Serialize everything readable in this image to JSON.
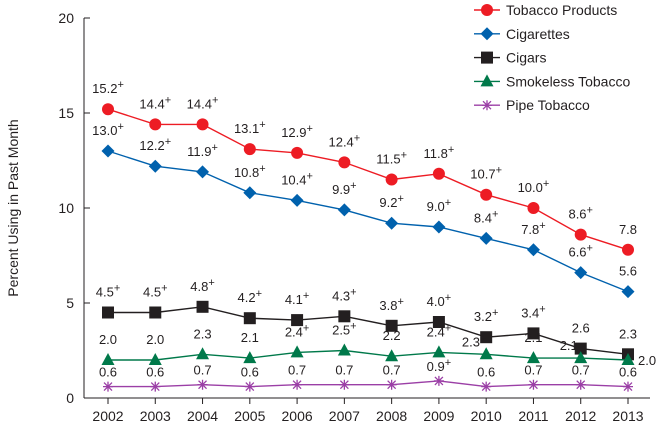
{
  "chart_data": {
    "type": "line",
    "title": "",
    "xlabel": "",
    "ylabel": "Percent Using in Past Month",
    "ylim": [
      0,
      20
    ],
    "yticks": [
      "0",
      "5",
      "10",
      "15",
      "20"
    ],
    "x": [
      "2002",
      "2003",
      "2004",
      "2005",
      "2006",
      "2007",
      "2008",
      "2009",
      "2010",
      "2011",
      "2012",
      "2013"
    ],
    "grid": false,
    "legend_placement": "top-right",
    "significance_marker": "+",
    "series": [
      {
        "name": "Tobacco Products",
        "color": "#ed1c24",
        "marker": "circle",
        "values": [
          15.2,
          14.4,
          14.4,
          13.1,
          12.9,
          12.4,
          11.5,
          11.8,
          10.7,
          10.0,
          8.6,
          7.8
        ],
        "labels": [
          "15.2",
          "14.4",
          "14.4",
          "13.1",
          "12.9",
          "12.4",
          "11.5",
          "11.8",
          "10.7",
          "10.0",
          "8.6",
          "7.8"
        ],
        "significant": [
          true,
          true,
          true,
          true,
          true,
          true,
          true,
          true,
          true,
          true,
          true,
          false
        ]
      },
      {
        "name": "Cigarettes",
        "color": "#0061ad",
        "marker": "diamond",
        "values": [
          13.0,
          12.2,
          11.9,
          10.8,
          10.4,
          9.9,
          9.2,
          9.0,
          8.4,
          7.8,
          6.6,
          5.6
        ],
        "labels": [
          "13.0",
          "12.2",
          "11.9",
          "10.8",
          "10.4",
          "9.9",
          "9.2",
          "9.0",
          "8.4",
          "7.8",
          "6.6",
          "5.6"
        ],
        "significant": [
          true,
          true,
          true,
          true,
          true,
          true,
          true,
          true,
          true,
          true,
          true,
          false
        ]
      },
      {
        "name": "Cigars",
        "color": "#231f20",
        "marker": "square",
        "values": [
          4.5,
          4.5,
          4.8,
          4.2,
          4.1,
          4.3,
          3.8,
          4.0,
          3.2,
          3.4,
          2.6,
          2.3
        ],
        "labels": [
          "4.5",
          "4.5",
          "4.8",
          "4.2",
          "4.1",
          "4.3",
          "3.8",
          "4.0",
          "3.2",
          "3.4",
          "2.6",
          "2.3"
        ],
        "significant": [
          true,
          true,
          true,
          true,
          true,
          true,
          true,
          true,
          true,
          true,
          false,
          false
        ]
      },
      {
        "name": "Smokeless Tobacco",
        "color": "#00794a",
        "marker": "triangle",
        "values": [
          2.0,
          2.0,
          2.3,
          2.1,
          2.4,
          2.5,
          2.2,
          2.4,
          2.3,
          2.1,
          2.1,
          2.0
        ],
        "labels": [
          "2.0",
          "2.0",
          "2.3",
          "2.1",
          "2.4",
          "2.5",
          "2.2",
          "2.4",
          "2.3",
          "2.1",
          "2.1",
          "2.0"
        ],
        "significant": [
          false,
          false,
          false,
          false,
          true,
          true,
          false,
          true,
          true,
          false,
          false,
          false
        ]
      },
      {
        "name": "Pipe Tobacco",
        "color": "#9b3fa6",
        "marker": "asterisk",
        "values": [
          0.6,
          0.6,
          0.7,
          0.6,
          0.7,
          0.7,
          0.7,
          0.9,
          0.6,
          0.7,
          0.7,
          0.6
        ],
        "labels": [
          "0.6",
          "0.6",
          "0.7",
          "0.6",
          "0.7",
          "0.7",
          "0.7",
          "0.9",
          "0.6",
          "0.7",
          "0.7",
          "0.6"
        ],
        "significant": [
          false,
          false,
          false,
          false,
          false,
          false,
          false,
          true,
          false,
          false,
          false,
          false
        ]
      }
    ]
  }
}
